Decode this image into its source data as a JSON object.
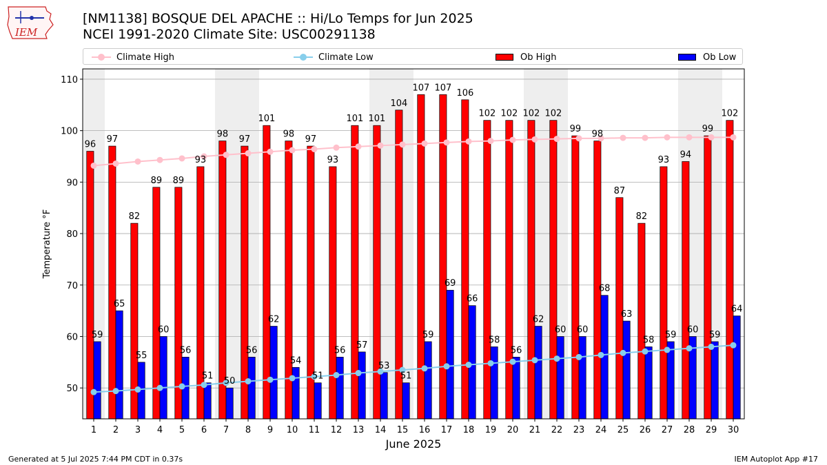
{
  "logo": {
    "text": "IEM"
  },
  "header": {
    "title_line1": "[NM1138] BOSQUE DEL APACHE :: Hi/Lo Temps for Jun 2025",
    "title_line2": "NCEI 1991-2020 Climate Site: USC00291138"
  },
  "legend": {
    "climate_high": "Climate High",
    "climate_low": "Climate Low",
    "ob_high": "Ob High",
    "ob_low": "Ob Low"
  },
  "colors": {
    "ob_high": "#ff0000",
    "ob_low": "#0000ff",
    "climate_high": "#ffc0cb",
    "climate_low": "#87ceeb",
    "weekend_shade": "#eeeeee",
    "grid": "#aaaaaa"
  },
  "chart_data": {
    "type": "bar",
    "xlabel": "June 2025",
    "ylabel": "Temperature °F",
    "ylim": [
      44,
      112
    ],
    "yticks": [
      50,
      60,
      70,
      80,
      90,
      100,
      110
    ],
    "grid": "horizontal",
    "legend_position": "top",
    "categories": [
      1,
      2,
      3,
      4,
      5,
      6,
      7,
      8,
      9,
      10,
      11,
      12,
      13,
      14,
      15,
      16,
      17,
      18,
      19,
      20,
      21,
      22,
      23,
      24,
      25,
      26,
      27,
      28,
      29,
      30
    ],
    "weekend_days": [
      1,
      7,
      8,
      14,
      15,
      21,
      22,
      28,
      29
    ],
    "series": [
      {
        "name": "Ob High",
        "kind": "bar",
        "values": [
          96,
          97,
          82,
          89,
          89,
          93,
          98,
          97,
          101,
          98,
          97,
          93,
          101,
          101,
          104,
          107,
          107,
          106,
          102,
          102,
          102,
          102,
          99,
          98,
          87,
          82,
          93,
          94,
          99,
          102
        ]
      },
      {
        "name": "Ob Low",
        "kind": "bar",
        "values": [
          59,
          65,
          55,
          60,
          56,
          51,
          50,
          56,
          62,
          54,
          51,
          56,
          57,
          53,
          51,
          59,
          69,
          66,
          58,
          56,
          62,
          60,
          60,
          68,
          63,
          58,
          59,
          60,
          59,
          64
        ]
      },
      {
        "name": "Climate High",
        "kind": "line",
        "values": [
          93.2,
          93.6,
          94.0,
          94.3,
          94.6,
          95.0,
          95.3,
          95.6,
          95.9,
          96.2,
          96.4,
          96.7,
          96.9,
          97.1,
          97.3,
          97.5,
          97.7,
          97.9,
          98.0,
          98.2,
          98.3,
          98.4,
          98.5,
          98.5,
          98.6,
          98.6,
          98.7,
          98.7,
          98.7,
          98.7
        ]
      },
      {
        "name": "Climate Low",
        "kind": "line",
        "values": [
          49.2,
          49.4,
          49.7,
          50.0,
          50.3,
          50.6,
          51.0,
          51.3,
          51.6,
          51.9,
          52.2,
          52.5,
          52.9,
          53.2,
          53.5,
          53.8,
          54.2,
          54.5,
          54.8,
          55.1,
          55.4,
          55.7,
          56.0,
          56.4,
          56.8,
          57.1,
          57.4,
          57.7,
          58.0,
          58.3
        ]
      }
    ]
  },
  "footer": {
    "left": "Generated at 5 Jul 2025 7:44 PM CDT in 0.37s",
    "right": "IEM Autoplot App #17"
  }
}
